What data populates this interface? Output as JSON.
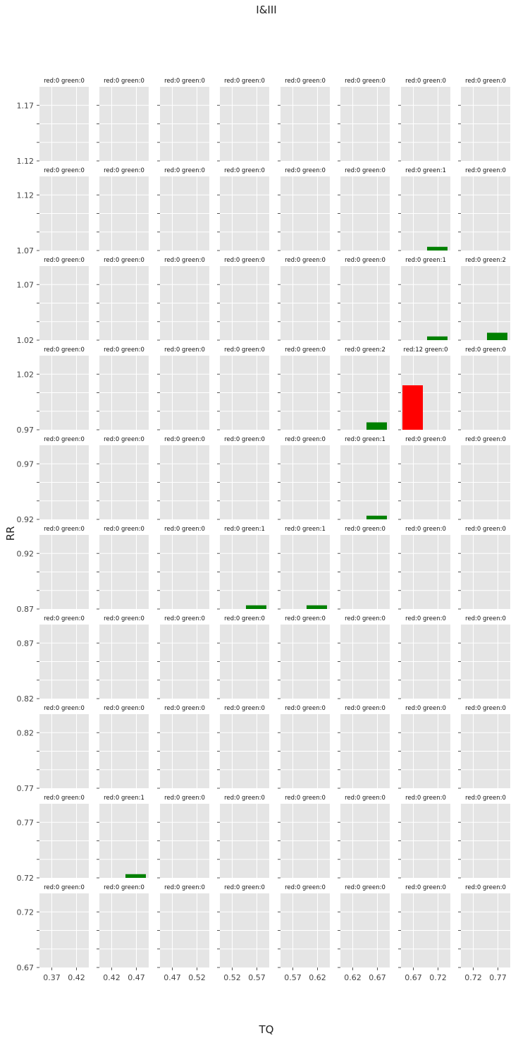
{
  "chart_data": {
    "type": "bar",
    "title": "I&III",
    "xlabel": "TQ",
    "ylabel": "RR",
    "grid": true,
    "legend": "none",
    "rows": 10,
    "cols": 8,
    "colors": {
      "red": "#ff0000",
      "green": "#008000",
      "panel_bg": "#e5e5e5",
      "grid": "#ffffff",
      "tick": "#555555"
    },
    "col_x_ticks": [
      [
        "0.37",
        "0.42"
      ],
      [
        "0.42",
        "0.47"
      ],
      [
        "0.47",
        "0.52"
      ],
      [
        "0.52",
        "0.57"
      ],
      [
        "0.57",
        "0.62"
      ],
      [
        "0.62",
        "0.67"
      ],
      [
        "0.67",
        "0.72"
      ],
      [
        "0.72",
        "0.77"
      ]
    ],
    "row_y_ticks": [
      [
        "1.17",
        "1.12"
      ],
      [
        "1.12",
        "1.07"
      ],
      [
        "1.07",
        "1.02"
      ],
      [
        "1.02",
        "0.97"
      ],
      [
        "0.97",
        "0.92"
      ],
      [
        "0.92",
        "0.87"
      ],
      [
        "0.87",
        "0.82"
      ],
      [
        "0.82",
        "0.77"
      ],
      [
        "0.77",
        "0.72"
      ],
      [
        "0.72",
        "0.67"
      ]
    ],
    "bar_scale_max": 20,
    "panels": [
      [
        "red:0 green:0",
        "red:0 green:0",
        "red:0 green:0",
        "red:0 green:0",
        "red:0 green:0",
        "red:0 green:0",
        "red:0 green:0",
        "red:0 green:0"
      ],
      [
        "red:0 green:0",
        "red:0 green:0",
        "red:0 green:0",
        "red:0 green:0",
        "red:0 green:0",
        "red:0 green:0",
        "red:0 green:1",
        "red:0 green:0"
      ],
      [
        "red:0 green:0",
        "red:0 green:0",
        "red:0 green:0",
        "red:0 green:0",
        "red:0 green:0",
        "red:0 green:0",
        "red:0 green:1",
        "red:0 green:2"
      ],
      [
        "red:0 green:0",
        "red:0 green:0",
        "red:0 green:0",
        "red:0 green:0",
        "red:0 green:0",
        "red:0 green:2",
        "red:12 green:0",
        "red:0 green:0"
      ],
      [
        "red:0 green:0",
        "red:0 green:0",
        "red:0 green:0",
        "red:0 green:0",
        "red:0 green:0",
        "red:0 green:1",
        "red:0 green:0",
        "red:0 green:0"
      ],
      [
        "red:0 green:0",
        "red:0 green:0",
        "red:0 green:0",
        "red:0 green:1",
        "red:0 green:1",
        "red:0 green:0",
        "red:0 green:0",
        "red:0 green:0"
      ],
      [
        "red:0 green:0",
        "red:0 green:0",
        "red:0 green:0",
        "red:0 green:0",
        "red:0 green:0",
        "red:0 green:0",
        "red:0 green:0",
        "red:0 green:0"
      ],
      [
        "red:0 green:0",
        "red:0 green:0",
        "red:0 green:0",
        "red:0 green:0",
        "red:0 green:0",
        "red:0 green:0",
        "red:0 green:0",
        "red:0 green:0"
      ],
      [
        "red:0 green:0",
        "red:0 green:1",
        "red:0 green:0",
        "red:0 green:0",
        "red:0 green:0",
        "red:0 green:0",
        "red:0 green:0",
        "red:0 green:0"
      ],
      [
        "red:0 green:0",
        "red:0 green:0",
        "red:0 green:0",
        "red:0 green:0",
        "red:0 green:0",
        "red:0 green:0",
        "red:0 green:0",
        "red:0 green:0"
      ]
    ],
    "counts": [
      [
        [
          0,
          0
        ],
        [
          0,
          0
        ],
        [
          0,
          0
        ],
        [
          0,
          0
        ],
        [
          0,
          0
        ],
        [
          0,
          0
        ],
        [
          0,
          0
        ],
        [
          0,
          0
        ]
      ],
      [
        [
          0,
          0
        ],
        [
          0,
          0
        ],
        [
          0,
          0
        ],
        [
          0,
          0
        ],
        [
          0,
          0
        ],
        [
          0,
          0
        ],
        [
          0,
          1
        ],
        [
          0,
          0
        ]
      ],
      [
        [
          0,
          0
        ],
        [
          0,
          0
        ],
        [
          0,
          0
        ],
        [
          0,
          0
        ],
        [
          0,
          0
        ],
        [
          0,
          0
        ],
        [
          0,
          1
        ],
        [
          0,
          2
        ]
      ],
      [
        [
          0,
          0
        ],
        [
          0,
          0
        ],
        [
          0,
          0
        ],
        [
          0,
          0
        ],
        [
          0,
          0
        ],
        [
          0,
          2
        ],
        [
          12,
          0
        ],
        [
          0,
          0
        ]
      ],
      [
        [
          0,
          0
        ],
        [
          0,
          0
        ],
        [
          0,
          0
        ],
        [
          0,
          0
        ],
        [
          0,
          0
        ],
        [
          0,
          1
        ],
        [
          0,
          0
        ],
        [
          0,
          0
        ]
      ],
      [
        [
          0,
          0
        ],
        [
          0,
          0
        ],
        [
          0,
          0
        ],
        [
          0,
          1
        ],
        [
          0,
          1
        ],
        [
          0,
          0
        ],
        [
          0,
          0
        ],
        [
          0,
          0
        ]
      ],
      [
        [
          0,
          0
        ],
        [
          0,
          0
        ],
        [
          0,
          0
        ],
        [
          0,
          0
        ],
        [
          0,
          0
        ],
        [
          0,
          0
        ],
        [
          0,
          0
        ],
        [
          0,
          0
        ]
      ],
      [
        [
          0,
          0
        ],
        [
          0,
          0
        ],
        [
          0,
          0
        ],
        [
          0,
          0
        ],
        [
          0,
          0
        ],
        [
          0,
          0
        ],
        [
          0,
          0
        ],
        [
          0,
          0
        ]
      ],
      [
        [
          0,
          0
        ],
        [
          0,
          1
        ],
        [
          0,
          0
        ],
        [
          0,
          0
        ],
        [
          0,
          0
        ],
        [
          0,
          0
        ],
        [
          0,
          0
        ],
        [
          0,
          0
        ]
      ],
      [
        [
          0,
          0
        ],
        [
          0,
          0
        ],
        [
          0,
          0
        ],
        [
          0,
          0
        ],
        [
          0,
          0
        ],
        [
          0,
          0
        ],
        [
          0,
          0
        ],
        [
          0,
          0
        ]
      ]
    ]
  }
}
